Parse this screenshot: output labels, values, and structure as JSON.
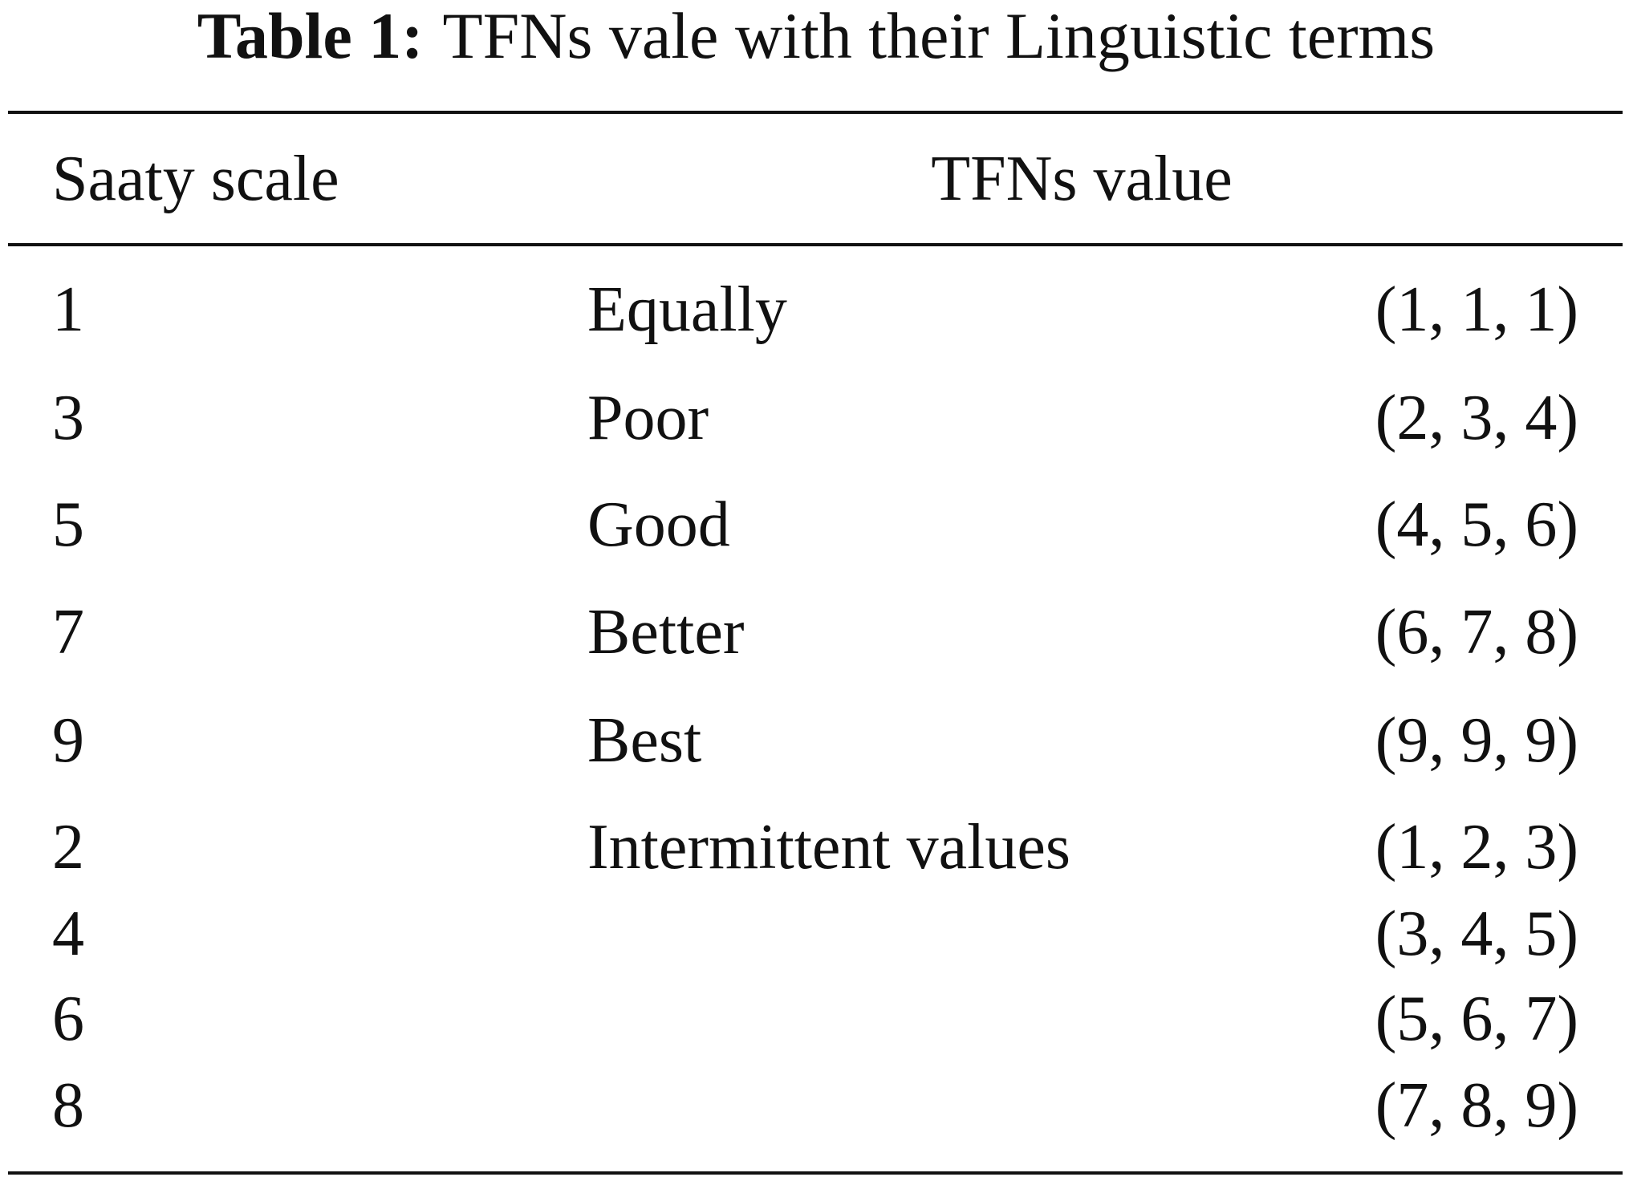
{
  "caption": {
    "label": "Table 1:",
    "text": "TFNs vale with their Linguistic terms"
  },
  "table": {
    "header": [
      "Saaty scale",
      "TFNs value"
    ],
    "rows": [
      {
        "scale": "1",
        "term": "Equally",
        "tfn": "(1, 1, 1)"
      },
      {
        "scale": "3",
        "term": "Poor",
        "tfn": "(2, 3, 4)"
      },
      {
        "scale": "5",
        "term": "Good",
        "tfn": "(4, 5, 6)"
      },
      {
        "scale": "7",
        "term": "Better",
        "tfn": "(6, 7, 8)"
      },
      {
        "scale": "9",
        "term": "Best",
        "tfn": "(9, 9, 9)"
      },
      {
        "scale": "2",
        "term": "Intermittent values",
        "tfn": "(1, 2, 3)"
      },
      {
        "scale": "4",
        "tfn": "(3, 4, 5)"
      },
      {
        "scale": "6",
        "tfn": "(5, 6, 7)"
      },
      {
        "scale": "8",
        "tfn": "(7, 8, 9)"
      }
    ]
  }
}
